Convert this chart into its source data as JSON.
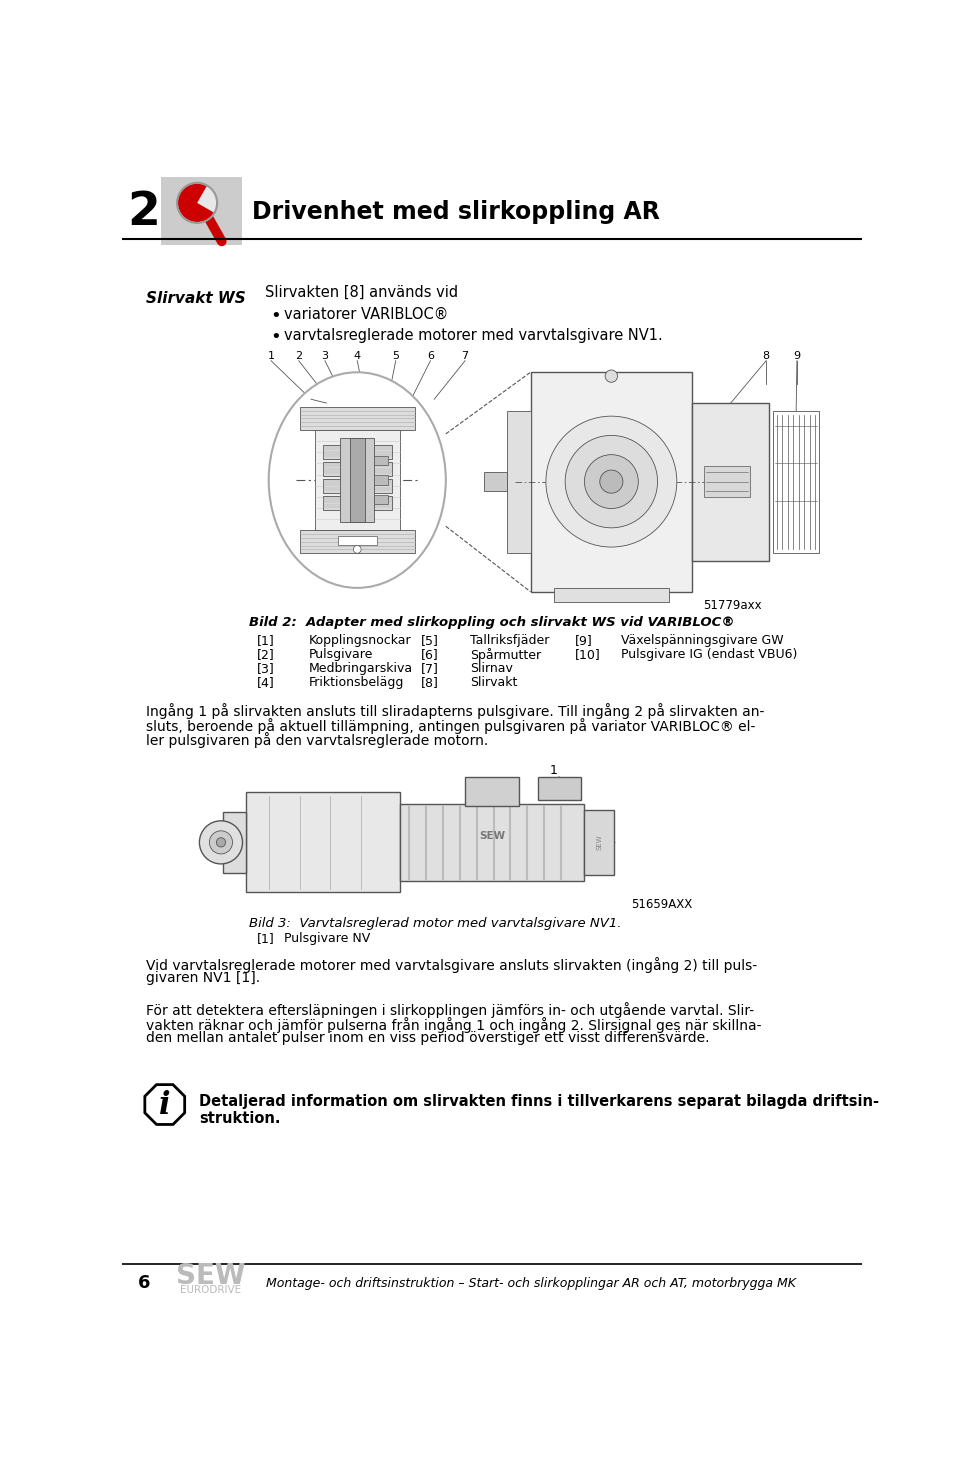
{
  "page_number": "2",
  "chapter_title": "Drivenhet med slirkoppling AR",
  "footer_page": "6",
  "footer_text": "Montage- och driftsinstruktion – Start- och slirkopplingar AR och AT, motorbrygga MK",
  "section_label": "Slirvakt WS",
  "intro_text_line1": "Slirvakten [8] används vid",
  "bullet1": "variatorer VARIBLOC®",
  "bullet2": "varvtalsreglerade motorer med varvtalsgivare NV1.",
  "fig1_label": "Bild 2:  Adapter med slirkoppling och slirvakt WS vid VARIBLOC®",
  "fig1_code": "51779axx",
  "fig1_parts": [
    [
      "[1]",
      "Kopplingsnockar",
      "[5]",
      "Tallriksfjäder",
      "[9]",
      "Växelspänningsgivare GW"
    ],
    [
      "[2]",
      "Pulsgivare",
      "[6]",
      "Spårmutter",
      "[10]",
      "Pulsgivare IG (endast VBU6)"
    ],
    [
      "[3]",
      "Medbringarskiva",
      "[7]",
      "Slirnav",
      "",
      ""
    ],
    [
      "[4]",
      "Friktionsbelägg",
      "[8]",
      "Slirvakt",
      "",
      ""
    ]
  ],
  "ingang_lines": [
    "Ingång 1 på slirvakten ansluts till sliradapterns pulsgivare. Till ingång 2 på slirvakten an-",
    "sluts, beroende på aktuell tillämpning, antingen pulsgivaren på variator VARIBLOC® el-",
    "ler pulsgivaren på den varvtalsreglerade motorn."
  ],
  "fig2_label": "Bild 3:  Varvtalsreglerad motor med varvtalsgivare NV1.",
  "fig2_code": "51659AXX",
  "fig2_part_num": "[1]",
  "fig2_part_name": "Pulsgivare NV",
  "body1_lines": [
    "Vid varvtalsreglerade motorer med varvtalsgivare ansluts slirvakten (ingång 2) till puls-",
    "givaren NV1 [1]."
  ],
  "body2_lines": [
    "För att detektera eftersläpningen i slirkopplingen jämförs in- och utgående varvtal. Slir-",
    "vakten räknar och jämför pulserna från ingång 1 och ingång 2. Slirsignal ges när skillna-",
    "den mellan antalet pulser inom en viss period överstiger ett visst differensvärde."
  ],
  "info_line1": "Detaljerad information om slirvakten finns i tillverkarens separat bilagda driftsin-",
  "info_line2": "struktion.",
  "bg_color": "#ffffff",
  "header_icon_bg": "#cccccc",
  "diagram_line_color": "#555555",
  "diagram_fill_light": "#eeeeee",
  "diagram_fill_mid": "#cccccc",
  "diagram_fill_dark": "#aaaaaa"
}
